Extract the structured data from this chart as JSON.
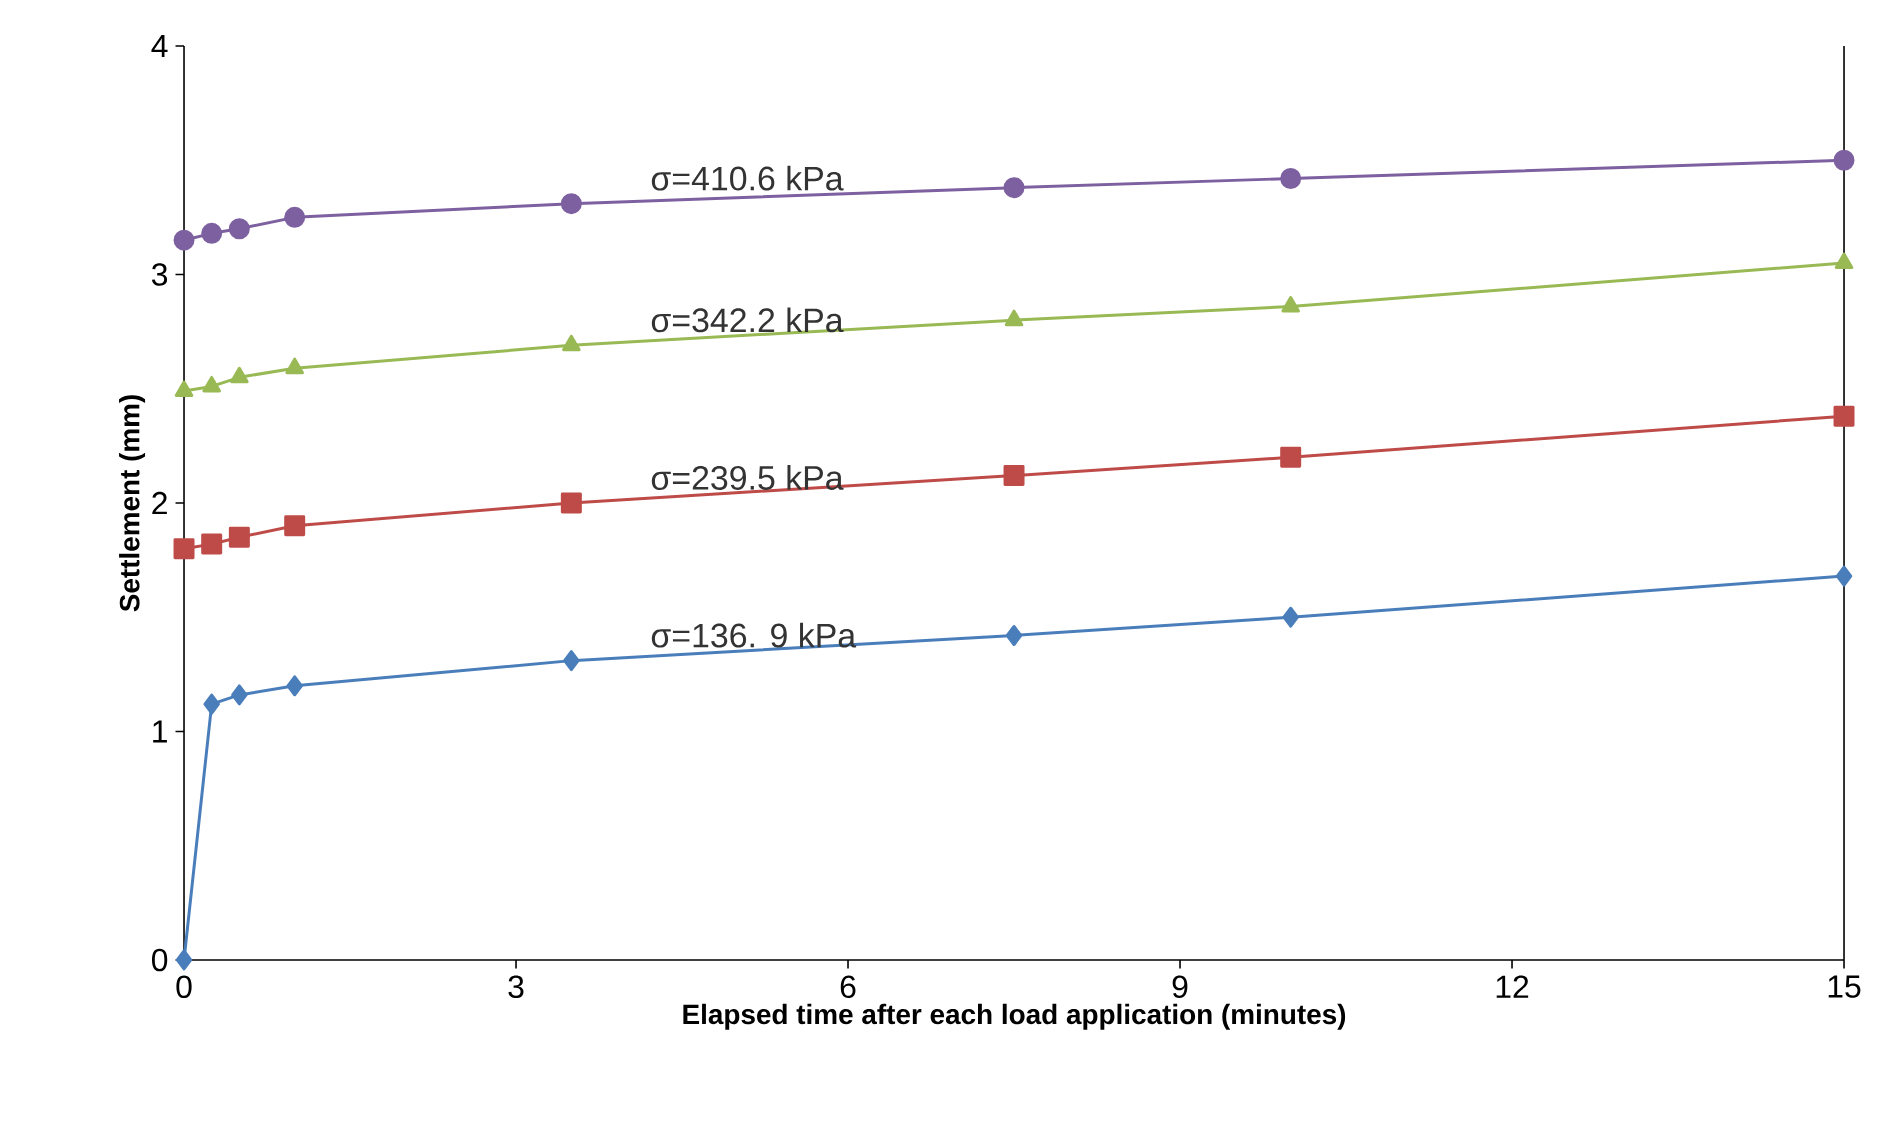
{
  "chart_data": {
    "type": "line",
    "xlabel": "Elapsed time after each load application  (minutes)",
    "ylabel": "Settlement (mm)",
    "x": [
      0,
      0.25,
      0.5,
      1,
      3.5,
      7.5,
      10,
      15
    ],
    "series": [
      {
        "color": "#4a7ebb",
        "marker": "diamond",
        "values": [
          0,
          1.12,
          1.16,
          1.2,
          1.31,
          1.42,
          1.5,
          1.68
        ]
      },
      {
        "color": "#be4b48",
        "marker": "square",
        "values": [
          1.8,
          1.82,
          1.85,
          1.9,
          2.0,
          2.12,
          2.2,
          2.38
        ]
      },
      {
        "color": "#98b954",
        "marker": "triangle",
        "values": [
          2.49,
          2.51,
          2.55,
          2.59,
          2.69,
          2.8,
          2.86,
          3.05
        ]
      },
      {
        "color": "#7d60a0",
        "marker": "circle",
        "values": [
          3.15,
          3.18,
          3.2,
          3.25,
          3.31,
          3.38,
          3.42,
          3.5
        ]
      }
    ],
    "annotations": [
      "σ=136. 9 kPa",
      "σ=239.5 kPa",
      "σ=342.2 kPa",
      "σ=410.6 kPa"
    ],
    "xlim": [
      0,
      15
    ],
    "ylim": [
      0,
      4
    ],
    "xticks": [
      0,
      3,
      6,
      9,
      12,
      15
    ],
    "yticks": [
      0,
      1,
      2,
      3,
      4
    ],
    "grid": false
  }
}
